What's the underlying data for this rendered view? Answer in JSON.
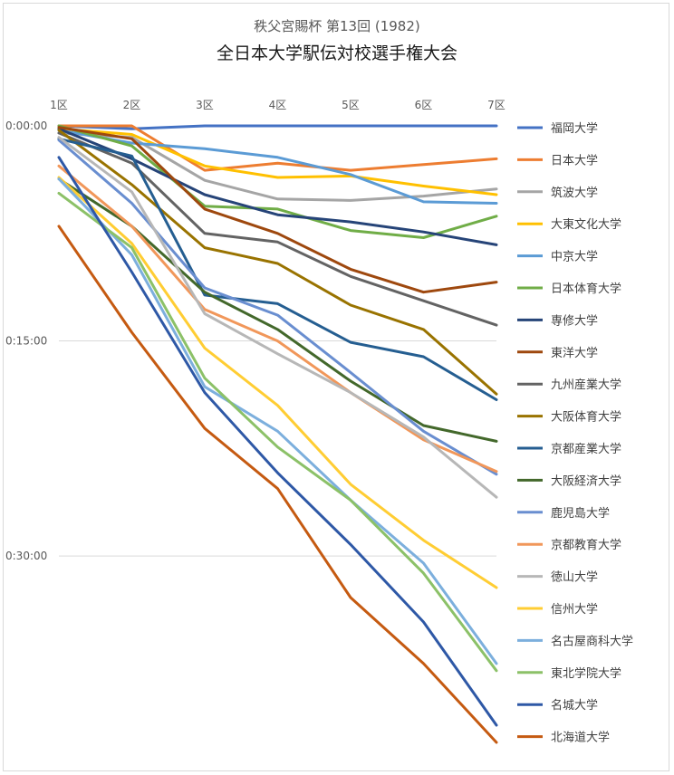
{
  "chart_data": {
    "type": "line",
    "title": "全日本大学駅伝対校選手権大会",
    "subtitle": "秩父宮賜杯 第13回 (1982)",
    "x": [
      "1区",
      "2区",
      "3区",
      "4区",
      "5区",
      "6区",
      "7区"
    ],
    "y_axis": {
      "direction": "reversed",
      "unit": "minutes behind leader",
      "ticks": [
        {
          "value": 0,
          "label": "0:00:00"
        },
        {
          "value": 15,
          "label": "0:15:00"
        },
        {
          "value": 30,
          "label": "0:30:00"
        }
      ],
      "range": [
        0,
        43
      ]
    },
    "gridlines": true,
    "legend": "right",
    "series": [
      {
        "name": "福岡大学",
        "color": "#4472c4",
        "values": [
          0.0,
          0.2,
          0.0,
          0.0,
          0.0,
          0.0,
          0.0
        ]
      },
      {
        "name": "日本大学",
        "color": "#ed7d31",
        "values": [
          0.0,
          0.0,
          3.1,
          2.6,
          3.1,
          2.7,
          2.3
        ]
      },
      {
        "name": "筑波大学",
        "color": "#a5a5a5",
        "values": [
          0.5,
          0.8,
          3.8,
          5.1,
          5.2,
          4.9,
          4.4
        ]
      },
      {
        "name": "大東文化大学",
        "color": "#ffc000",
        "values": [
          0.2,
          0.6,
          2.8,
          3.6,
          3.5,
          4.2,
          4.8
        ]
      },
      {
        "name": "中京大学",
        "color": "#5b9bd5",
        "values": [
          0.3,
          1.2,
          1.6,
          2.2,
          3.4,
          5.3,
          5.4
        ]
      },
      {
        "name": "日本体育大学",
        "color": "#70ad47",
        "values": [
          0.0,
          1.4,
          5.6,
          5.8,
          7.3,
          7.8,
          6.3
        ]
      },
      {
        "name": "専修大学",
        "color": "#264478",
        "values": [
          0.2,
          2.3,
          4.8,
          6.2,
          6.7,
          7.4,
          8.3
        ]
      },
      {
        "name": "東洋大学",
        "color": "#9e480e",
        "values": [
          0.1,
          0.9,
          5.8,
          7.5,
          10.0,
          11.6,
          10.9
        ]
      },
      {
        "name": "九州産業大学",
        "color": "#636363",
        "values": [
          0.5,
          2.6,
          7.5,
          8.1,
          10.5,
          12.2,
          13.9
        ]
      },
      {
        "name": "大阪体育大学",
        "color": "#997300",
        "values": [
          0.3,
          4.1,
          8.5,
          9.6,
          12.5,
          14.2,
          18.7
        ]
      },
      {
        "name": "京都産業大学",
        "color": "#255e91",
        "values": [
          0.9,
          2.1,
          11.8,
          12.4,
          15.1,
          16.1,
          19.1
        ]
      },
      {
        "name": "大阪経済大学",
        "color": "#43682b",
        "values": [
          3.7,
          7.0,
          11.6,
          14.2,
          17.8,
          20.9,
          22.0
        ]
      },
      {
        "name": "鹿児島大学",
        "color": "#698ed0",
        "values": [
          1.0,
          5.4,
          11.3,
          13.2,
          17.2,
          21.3,
          24.3
        ]
      },
      {
        "name": "京都教育大学",
        "color": "#f1975a",
        "values": [
          2.8,
          7.0,
          12.8,
          15.0,
          18.6,
          21.9,
          24.1
        ]
      },
      {
        "name": "徳山大学",
        "color": "#b7b7b7",
        "values": [
          0.8,
          4.6,
          13.1,
          15.9,
          18.6,
          21.7,
          25.9
        ]
      },
      {
        "name": "信州大学",
        "color": "#ffcd33",
        "values": [
          3.6,
          8.2,
          15.5,
          19.5,
          25.0,
          28.9,
          32.2
        ]
      },
      {
        "name": "名古屋商科大学",
        "color": "#7cafdd",
        "values": [
          3.7,
          9.0,
          18.2,
          21.3,
          26.1,
          30.5,
          37.5
        ]
      },
      {
        "name": "東北学院大学",
        "color": "#8cc168",
        "values": [
          4.7,
          8.5,
          17.6,
          22.4,
          26.1,
          31.2,
          38.0
        ]
      },
      {
        "name": "名城大学",
        "color": "#2e58a6",
        "values": [
          2.2,
          10.2,
          18.6,
          24.2,
          29.2,
          34.6,
          41.8
        ]
      },
      {
        "name": "北海道大学",
        "color": "#c55a11",
        "values": [
          7.0,
          14.4,
          21.1,
          25.3,
          32.9,
          37.5,
          43.0
        ]
      }
    ]
  }
}
